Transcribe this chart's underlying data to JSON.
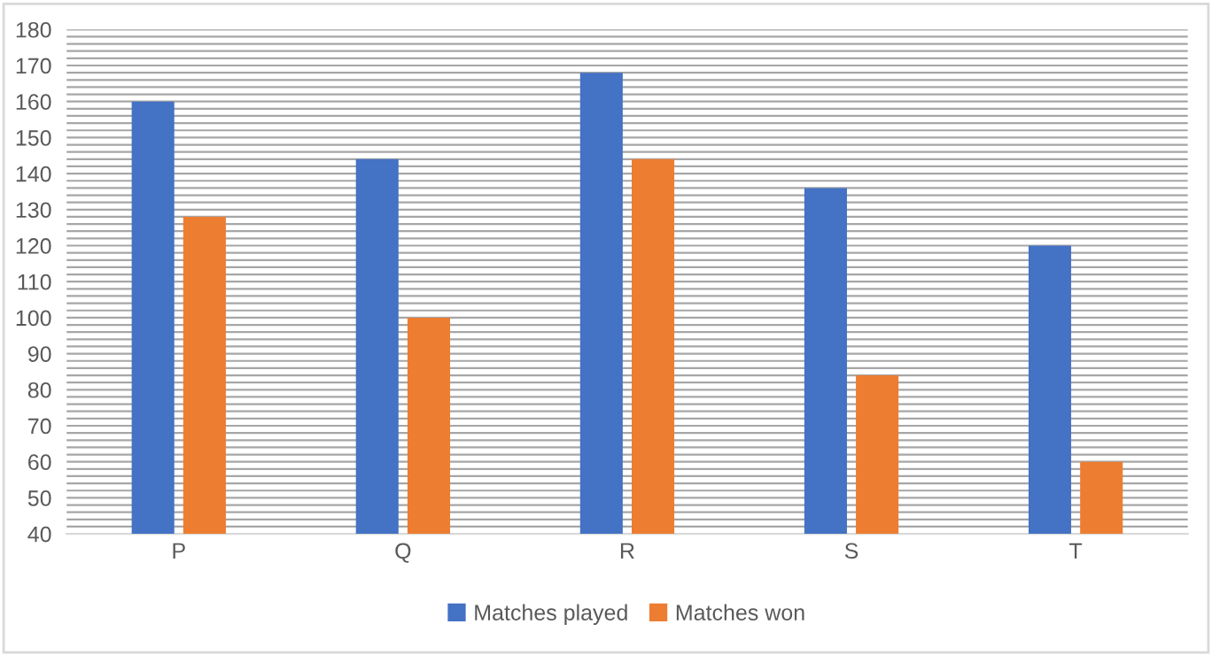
{
  "chart_data": {
    "type": "bar",
    "categories": [
      "P",
      "Q",
      "R",
      "S",
      "T"
    ],
    "series": [
      {
        "name": "Matches played",
        "color": "#4472c4",
        "values": [
          160,
          144,
          168,
          136,
          120
        ]
      },
      {
        "name": "Matches won",
        "color": "#ed7d31",
        "values": [
          128,
          100,
          144,
          84,
          60
        ]
      }
    ],
    "ylim": [
      40,
      180
    ],
    "yticks": [
      40,
      {
        "value": 42,
        "label": null
      },
      {
        "value": 44,
        "label": null
      },
      {
        "value": 46,
        "label": null
      },
      {
        "value": 48,
        "label": null
      },
      50,
      {
        "value": 52,
        "label": null
      },
      {
        "value": 54,
        "label": null
      },
      {
        "value": 56,
        "label": null
      },
      {
        "value": 58,
        "label": null
      },
      60,
      {
        "value": 62,
        "label": null
      },
      {
        "value": 64,
        "label": null
      },
      {
        "value": 66,
        "label": null
      },
      {
        "value": 68,
        "label": null
      },
      70,
      {
        "value": 72,
        "label": null
      },
      {
        "value": 74,
        "label": null
      },
      {
        "value": 76,
        "label": null
      },
      {
        "value": 78,
        "label": null
      },
      80,
      {
        "value": 82,
        "label": null
      },
      {
        "value": 84,
        "label": null
      },
      {
        "value": 86,
        "label": null
      },
      {
        "value": 88,
        "label": null
      },
      90,
      {
        "value": 92,
        "label": null
      },
      {
        "value": 94,
        "label": null
      },
      {
        "value": 96,
        "label": null
      },
      {
        "value": 98,
        "label": null
      },
      100,
      {
        "value": 102,
        "label": null
      },
      {
        "value": 104,
        "label": null
      },
      {
        "value": 106,
        "label": null
      },
      {
        "value": 108,
        "label": null
      },
      110,
      {
        "value": 112,
        "label": null
      },
      {
        "value": 114,
        "label": null
      },
      {
        "value": 116,
        "label": null
      },
      {
        "value": 118,
        "label": null
      },
      120,
      {
        "value": 122,
        "label": null
      },
      {
        "value": 124,
        "label": null
      },
      {
        "value": 126,
        "label": null
      },
      {
        "value": 128,
        "label": null
      },
      130,
      {
        "value": 132,
        "label": null
      },
      {
        "value": 134,
        "label": null
      },
      {
        "value": 136,
        "label": null
      },
      {
        "value": 138,
        "label": null
      },
      140,
      {
        "value": 142,
        "label": null
      },
      {
        "value": 144,
        "label": null
      },
      {
        "value": 146,
        "label": null
      },
      {
        "value": 148,
        "label": null
      },
      150,
      {
        "value": 152,
        "label": null
      },
      {
        "value": 154,
        "label": null
      },
      {
        "value": 156,
        "label": null
      },
      {
        "value": 158,
        "label": null
      },
      160,
      {
        "value": 162,
        "label": null
      },
      {
        "value": 164,
        "label": null
      },
      {
        "value": 166,
        "label": null
      },
      {
        "value": 168,
        "label": null
      },
      170,
      {
        "value": 172,
        "label": null
      },
      {
        "value": 174,
        "label": null
      },
      {
        "value": 176,
        "label": null
      },
      {
        "value": 178,
        "label": null
      },
      180
    ],
    "grid": "y",
    "legend": "bottom"
  }
}
